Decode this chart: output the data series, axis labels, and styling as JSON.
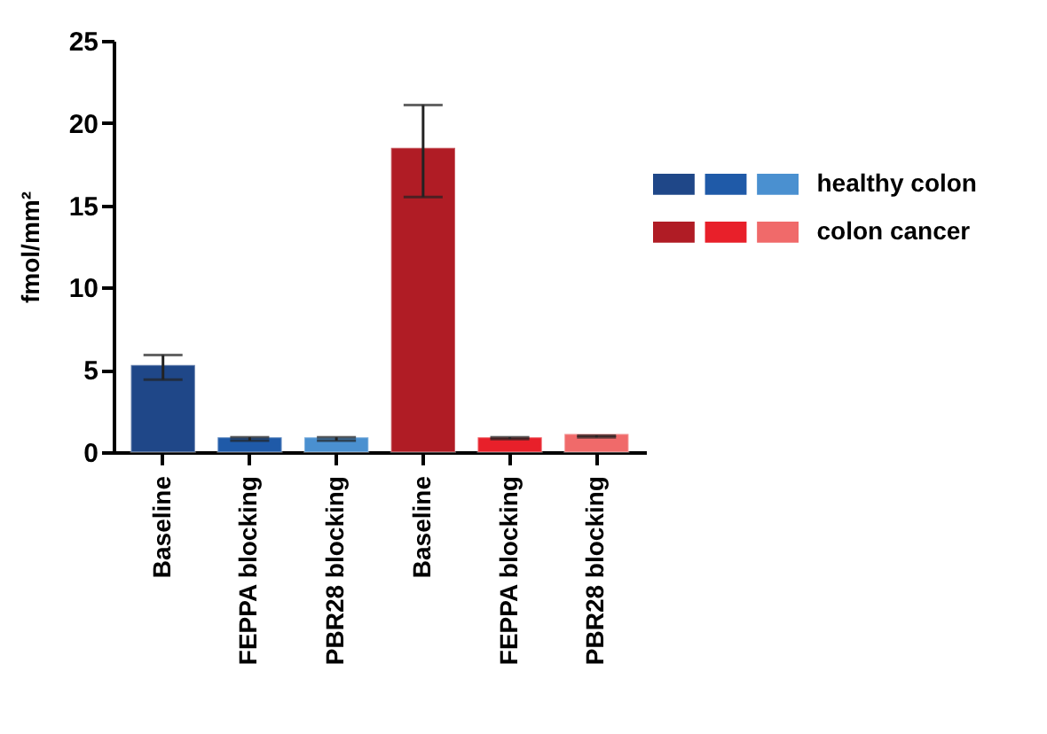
{
  "chart_data": {
    "type": "bar",
    "ylabel": "fmol/mm²",
    "categories": [
      "Baseline",
      "FEPPA blocking",
      "PBR28 blocking",
      "Baseline",
      "FEPPA blocking",
      "PBR28 blocking"
    ],
    "series": [
      {
        "name": "healthy colon",
        "colors": [
          "#1f4788",
          "#1f5aa8",
          "#4a90d0",
          null,
          null,
          null
        ],
        "values": [
          5.3,
          0.9,
          0.9,
          null,
          null,
          null
        ],
        "errors": [
          [
            4.4,
            5.9
          ],
          [
            0.7,
            0.9
          ],
          [
            0.7,
            0.9
          ],
          null,
          null,
          null
        ]
      },
      {
        "name": "colon cancer",
        "colors": [
          null,
          null,
          null,
          "#b01c25",
          "#e8202a",
          "#f06a6a"
        ],
        "values": [
          null,
          null,
          null,
          18.5,
          0.9,
          1.1
        ],
        "errors": [
          null,
          null,
          null,
          [
            15.5,
            21.1
          ],
          [
            0.8,
            0.9
          ],
          [
            0.9,
            1.0
          ]
        ]
      }
    ],
    "ylim": [
      0,
      25
    ],
    "yticks": [
      0,
      5,
      10,
      15,
      20,
      25
    ],
    "grid": false,
    "legend": "right"
  }
}
